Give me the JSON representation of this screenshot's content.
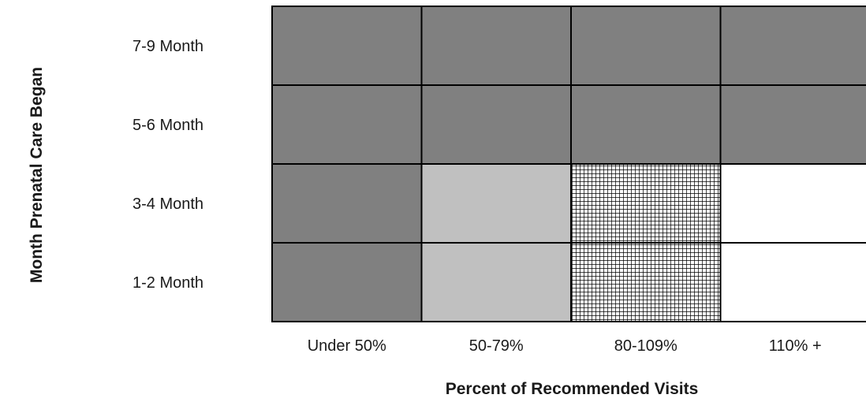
{
  "chart_data": {
    "type": "heatmap",
    "title": "",
    "xlabel": "Percent of Recommended Visits",
    "ylabel": "Month Prenatal Care Began",
    "x_categories": [
      "Under 50%",
      "50-79%",
      "80-109%",
      "110% +"
    ],
    "y_categories": [
      "7-9 Month",
      "5-6 Month",
      "3-4 Month",
      "1-2 Month"
    ],
    "cell_fills": [
      [
        "dark",
        "dark",
        "dark",
        "dark"
      ],
      [
        "dark",
        "dark",
        "dark",
        "dark"
      ],
      [
        "dark",
        "light",
        "crosshatch",
        "white"
      ],
      [
        "dark",
        "light",
        "crosshatch",
        "white"
      ]
    ],
    "fill_colors": {
      "dark": "#808080",
      "light": "#c0c0c0",
      "crosshatch": "#000000",
      "white": "#ffffff"
    },
    "grid": true,
    "legend": "none"
  }
}
